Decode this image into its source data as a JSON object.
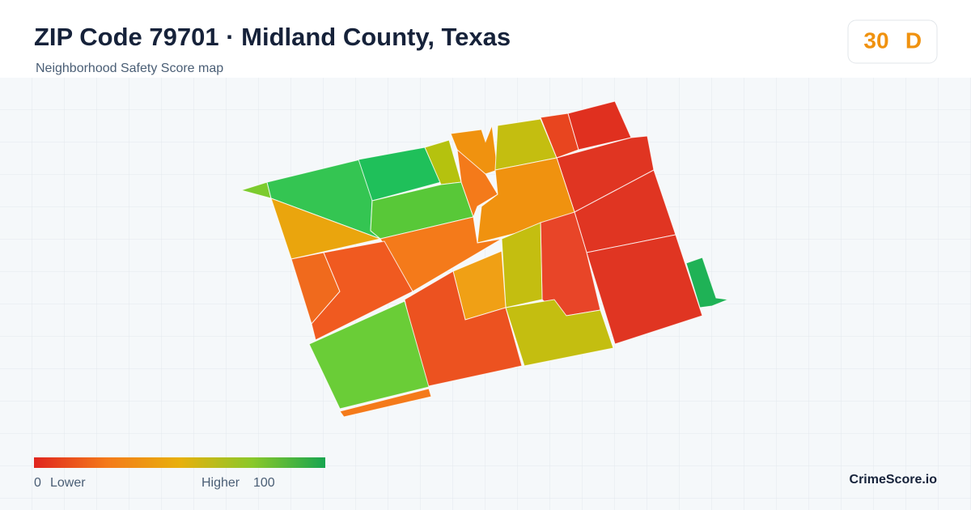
{
  "header": {
    "title": "ZIP Code 79701 · Midland County, Texas",
    "subtitle": "Neighborhood Safety Score map"
  },
  "score": {
    "value": "30",
    "grade": "D"
  },
  "legend": {
    "min": "0",
    "min_label": "Lower",
    "max_label": "Higher",
    "max": "100"
  },
  "brand": "CrimeScore.io"
}
